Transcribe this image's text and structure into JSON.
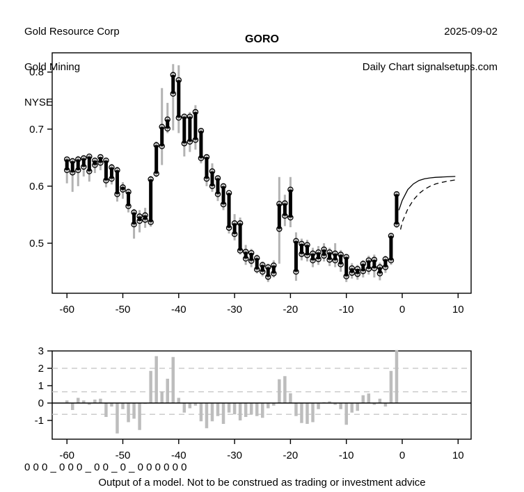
{
  "header": {
    "company": "Gold Resource Corp",
    "industry": "Gold Mining",
    "exchange": "NYSE",
    "date": "2025-09-02",
    "chart_type_line": "Daily Chart signalsetups.com"
  },
  "title": "GORO",
  "footer": {
    "signal_string": "0 0 0 _ 0 0 0 _ 0 0 _ 0 _ 0 0 0 0 0 0",
    "disclaimer": "Output of a model. Not to be construed as trading or investment advice"
  },
  "colors": {
    "ink": "#000000",
    "range_gray": "#b3b3b3",
    "bar_gray": "#bdbdbd",
    "grid_dash_gray": "#cccccc",
    "background": "#ffffff"
  },
  "chart_data": [
    {
      "type": "ohlc-bar",
      "title": "GORO",
      "xlabel": "",
      "ylabel": "",
      "x_start": -60,
      "xticks": [
        -60,
        -50,
        -40,
        -30,
        -20,
        -10,
        0,
        10
      ],
      "xtick_labels": [
        "-60",
        "-50",
        "-40",
        "-30",
        "-20",
        "-10",
        "0",
        "10"
      ],
      "yticks": [
        0.5,
        0.6,
        0.7,
        0.8
      ],
      "ytick_labels": [
        "0.5",
        "0.6",
        "0.7",
        "0.8"
      ],
      "xlim": [
        -62,
        12
      ],
      "ylim": [
        0.412,
        0.834
      ],
      "grid": "off",
      "note": "each bar = [body_low, body_high, low, high]; open/close circles mark both body ends",
      "bars": [
        [
          0.628,
          0.647,
          0.605,
          0.65
        ],
        [
          0.624,
          0.644,
          0.59,
          0.648
        ],
        [
          0.628,
          0.647,
          0.6,
          0.653
        ],
        [
          0.634,
          0.649,
          0.617,
          0.654
        ],
        [
          0.626,
          0.652,
          0.608,
          0.655
        ],
        [
          0.637,
          0.645,
          0.623,
          0.65
        ],
        [
          0.641,
          0.651,
          0.628,
          0.654
        ],
        [
          0.61,
          0.645,
          0.598,
          0.649
        ],
        [
          0.613,
          0.633,
          0.603,
          0.639
        ],
        [
          0.586,
          0.628,
          0.573,
          0.634
        ],
        [
          0.594,
          0.598,
          0.578,
          0.607
        ],
        [
          0.565,
          0.59,
          0.554,
          0.596
        ],
        [
          0.533,
          0.554,
          0.508,
          0.56
        ],
        [
          0.539,
          0.547,
          0.519,
          0.558
        ],
        [
          0.541,
          0.549,
          0.527,
          0.562
        ],
        [
          0.537,
          0.612,
          0.529,
          0.618
        ],
        [
          0.622,
          0.672,
          0.616,
          0.678
        ],
        [
          0.67,
          0.704,
          0.637,
          0.772
        ],
        [
          0.701,
          0.717,
          0.693,
          0.746
        ],
        [
          0.762,
          0.795,
          0.698,
          0.814
        ],
        [
          0.72,
          0.786,
          0.693,
          0.812
        ],
        [
          0.675,
          0.722,
          0.652,
          0.726
        ],
        [
          0.678,
          0.722,
          0.66,
          0.73
        ],
        [
          0.681,
          0.73,
          0.664,
          0.742
        ],
        [
          0.649,
          0.697,
          0.64,
          0.7
        ],
        [
          0.613,
          0.651,
          0.6,
          0.655
        ],
        [
          0.6,
          0.626,
          0.59,
          0.64
        ],
        [
          0.586,
          0.614,
          0.574,
          0.618
        ],
        [
          0.568,
          0.6,
          0.558,
          0.604
        ],
        [
          0.527,
          0.588,
          0.517,
          0.59
        ],
        [
          0.516,
          0.535,
          0.505,
          0.551
        ],
        [
          0.487,
          0.535,
          0.48,
          0.545
        ],
        [
          0.473,
          0.485,
          0.462,
          0.497
        ],
        [
          0.469,
          0.483,
          0.458,
          0.49
        ],
        [
          0.454,
          0.474,
          0.447,
          0.48
        ],
        [
          0.45,
          0.462,
          0.442,
          0.468
        ],
        [
          0.441,
          0.458,
          0.432,
          0.464
        ],
        [
          0.447,
          0.461,
          0.44,
          0.47
        ],
        [
          0.525,
          0.569,
          0.464,
          0.616
        ],
        [
          0.548,
          0.57,
          0.53,
          0.585
        ],
        [
          0.545,
          0.594,
          0.528,
          0.616
        ],
        [
          0.45,
          0.504,
          0.434,
          0.519
        ],
        [
          0.481,
          0.499,
          0.47,
          0.508
        ],
        [
          0.479,
          0.497,
          0.468,
          0.506
        ],
        [
          0.47,
          0.482,
          0.458,
          0.492
        ],
        [
          0.472,
          0.484,
          0.462,
          0.495
        ],
        [
          0.478,
          0.489,
          0.468,
          0.5
        ],
        [
          0.471,
          0.484,
          0.46,
          0.492
        ],
        [
          0.47,
          0.482,
          0.458,
          0.5
        ],
        [
          0.463,
          0.48,
          0.45,
          0.488
        ],
        [
          0.442,
          0.476,
          0.432,
          0.48
        ],
        [
          0.448,
          0.456,
          0.438,
          0.465
        ],
        [
          0.446,
          0.455,
          0.436,
          0.462
        ],
        [
          0.451,
          0.464,
          0.44,
          0.47
        ],
        [
          0.455,
          0.47,
          0.445,
          0.478
        ],
        [
          0.456,
          0.471,
          0.44,
          0.48
        ],
        [
          0.447,
          0.458,
          0.435,
          0.466
        ],
        [
          0.458,
          0.472,
          0.448,
          0.478
        ],
        [
          0.47,
          0.513,
          0.462,
          0.518
        ],
        [
          0.533,
          0.586,
          0.527,
          0.59
        ]
      ],
      "forecast_solid": [
        [
          -0.6,
          0.558
        ],
        [
          0,
          0.575
        ],
        [
          1,
          0.594
        ],
        [
          2,
          0.604
        ],
        [
          3,
          0.61
        ],
        [
          4,
          0.613
        ],
        [
          5,
          0.6145
        ],
        [
          6,
          0.6155
        ],
        [
          7,
          0.616
        ],
        [
          8,
          0.6165
        ],
        [
          9.5,
          0.617
        ]
      ],
      "forecast_dashed": [
        [
          -0.3,
          0.524
        ],
        [
          0,
          0.537
        ],
        [
          1,
          0.56
        ],
        [
          2,
          0.576
        ],
        [
          3,
          0.587
        ],
        [
          4,
          0.5945
        ],
        [
          5,
          0.6
        ],
        [
          6,
          0.604
        ],
        [
          7,
          0.6065
        ],
        [
          8,
          0.6085
        ],
        [
          9.5,
          0.611
        ]
      ]
    },
    {
      "type": "bar",
      "title": "",
      "xlabel": "",
      "ylabel": "",
      "x_start": -60,
      "xticks": [
        -60,
        -50,
        -40,
        -30,
        -20,
        -10,
        0,
        10
      ],
      "xtick_labels": [
        "-60",
        "-50",
        "-40",
        "-30",
        "-20",
        "-10",
        "0",
        "10"
      ],
      "yticks": [
        3,
        2,
        1,
        0,
        -1
      ],
      "ytick_labels": [
        "3",
        "2",
        "1",
        "0",
        "-1"
      ],
      "xlim": [
        -62,
        12
      ],
      "ylim": [
        -2.1,
        3.1
      ],
      "zero_line": 0,
      "dashed_gridlines": [
        2,
        0.65,
        -0.65
      ],
      "values": [
        0.15,
        -0.4,
        0.3,
        0.15,
        -0.1,
        0.2,
        0.25,
        -0.8,
        -0.2,
        -1.75,
        -0.35,
        -1.1,
        -0.9,
        -1.55,
        -0.05,
        1.85,
        2.7,
        0.65,
        1.4,
        2.65,
        0.3,
        -0.55,
        -0.3,
        -0.15,
        -1.05,
        -1.45,
        -1.05,
        -0.75,
        -1.2,
        -0.55,
        -0.65,
        -1.0,
        -0.8,
        -0.65,
        -0.75,
        -0.85,
        -0.3,
        -0.15,
        1.37,
        1.55,
        0.56,
        -0.75,
        -1.15,
        -1.2,
        -1.1,
        -0.35,
        0.05,
        0.1,
        -0.1,
        -0.35,
        -1.25,
        -0.55,
        -0.45,
        0.45,
        0.55,
        -0.1,
        0.25,
        -0.2,
        1.85,
        3.05
      ]
    }
  ]
}
